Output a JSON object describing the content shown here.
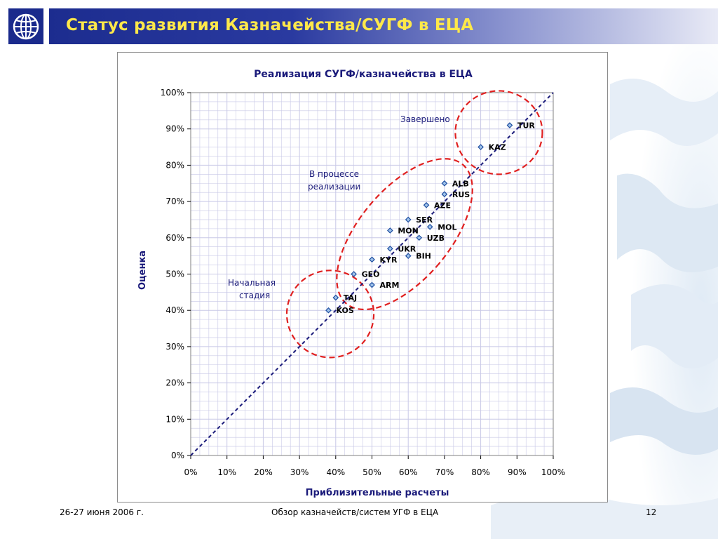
{
  "slide": {
    "title": "Статус развития Казначейства/СУГФ в ЕЦА",
    "footer_date": "26-27 июня 2006 г.",
    "footer_center": "Обзор казначейств/систем УГФ в ЕЦА",
    "page_number": "12"
  },
  "colors": {
    "header_dark": "#1a2a8c",
    "title_text": "#ffe84a",
    "navy_text": "#1a1a7a",
    "marker_fill": "#9fc3ea",
    "marker_stroke": "#1f4ea0",
    "diagonal": "#1a1a7a",
    "ellipse": "#e02020",
    "grid": "#c8c8e6"
  },
  "chart_data": {
    "type": "scatter",
    "title": "Реализация СУГФ/казначейства в ЕЦА",
    "xlabel": "Приблизительные расчеты",
    "ylabel": "Оценка",
    "xlim": [
      0,
      100
    ],
    "ylim": [
      0,
      100
    ],
    "x_ticks": [
      "0%",
      "10%",
      "20%",
      "30%",
      "40%",
      "50%",
      "60%",
      "70%",
      "80%",
      "90%",
      "100%"
    ],
    "y_ticks": [
      "0%",
      "10%",
      "20%",
      "30%",
      "40%",
      "50%",
      "60%",
      "70%",
      "80%",
      "90%",
      "100%"
    ],
    "grid": true,
    "reference_line": "diagonal-dashed",
    "points": [
      {
        "label": "TUR",
        "x": 88,
        "y": 91
      },
      {
        "label": "KAZ",
        "x": 80,
        "y": 85
      },
      {
        "label": "ALB",
        "x": 70,
        "y": 75
      },
      {
        "label": "RUS",
        "x": 70,
        "y": 72
      },
      {
        "label": "AZE",
        "x": 65,
        "y": 69
      },
      {
        "label": "SER",
        "x": 60,
        "y": 65
      },
      {
        "label": "MOL",
        "x": 66,
        "y": 63
      },
      {
        "label": "MON",
        "x": 55,
        "y": 62
      },
      {
        "label": "UZB",
        "x": 63,
        "y": 60
      },
      {
        "label": "UKR",
        "x": 55,
        "y": 57
      },
      {
        "label": "BIH",
        "x": 60,
        "y": 55
      },
      {
        "label": "KYR",
        "x": 50,
        "y": 54
      },
      {
        "label": "GEO",
        "x": 45,
        "y": 50
      },
      {
        "label": "ARM",
        "x": 50,
        "y": 47
      },
      {
        "label": "TAJ",
        "x": 40,
        "y": 43.5
      },
      {
        "label": "KOS",
        "x": 38,
        "y": 40
      }
    ],
    "annotations": {
      "completed": "Завершено",
      "in_progress_1": "В процессе",
      "in_progress_2": "реализации",
      "initial_1": "Начальная",
      "initial_2": "стадия"
    },
    "groups": [
      {
        "name": "completed",
        "cx": 85,
        "cy": 89,
        "rx": 12,
        "ry": 11.5,
        "rotate": 0
      },
      {
        "name": "in_progress",
        "cx": 59,
        "cy": 61,
        "rx": 12.5,
        "ry": 25,
        "rotate": 40
      },
      {
        "name": "initial",
        "cx": 38.5,
        "cy": 39,
        "rx": 12,
        "ry": 12,
        "rotate": 0
      }
    ]
  }
}
